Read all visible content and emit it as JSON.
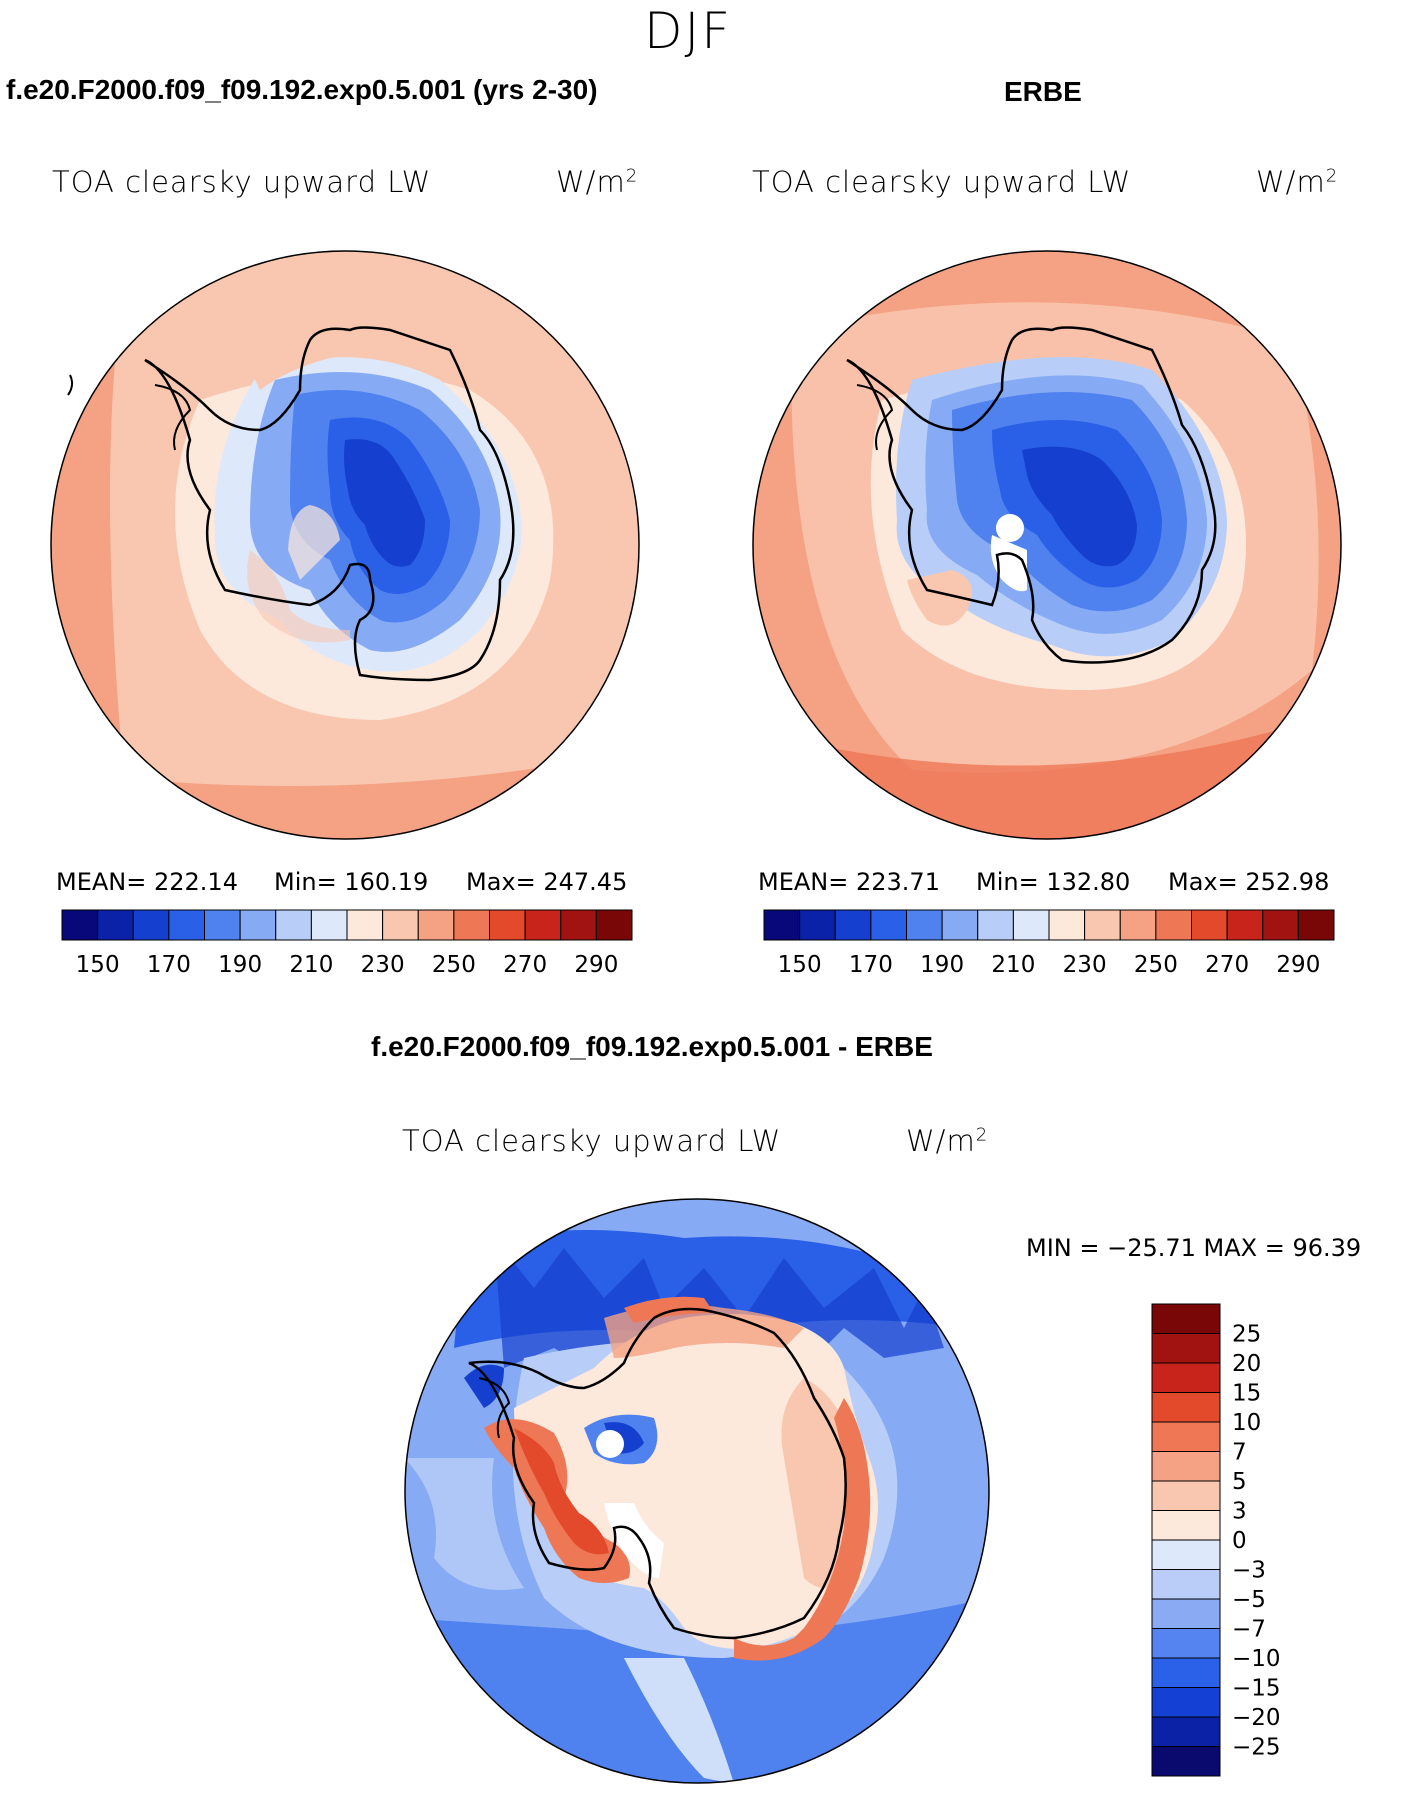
{
  "page": {
    "season": "DJF"
  },
  "panels": {
    "model": {
      "title": "f.e20.F2000.f09_f09.192.exp0.5.001 (yrs 2-30)",
      "variable": "TOA clearsky upward LW",
      "units_base": "W/m",
      "units_exp": "2",
      "mean": "MEAN= 222.14",
      "min": "Min= 160.19",
      "max": "Max= 247.45"
    },
    "obs": {
      "title": "ERBE",
      "variable": "TOA clearsky upward LW",
      "units_base": "W/m",
      "units_exp": "2",
      "mean": "MEAN= 223.71",
      "min": "Min= 132.80",
      "max": "Max= 252.98"
    },
    "diff": {
      "title": "f.e20.F2000.f09_f09.192.exp0.5.001 - ERBE",
      "variable": "TOA clearsky upward LW",
      "units_base": "W/m",
      "units_exp": "2",
      "minmax": "MIN = −25.71  MAX =   96.39"
    }
  },
  "colors": {
    "main_scale": [
      "#08087a",
      "#0a22a8",
      "#1540cf",
      "#2a5fe8",
      "#4f82ef",
      "#86aaf4",
      "#b8cef8",
      "#dde9fb",
      "#fde8dc",
      "#f9c7b0",
      "#f4a283",
      "#ee7755",
      "#e34a2c",
      "#c9241b",
      "#a11310",
      "#7a0708"
    ],
    "diff_scale": [
      "#0a0a6e",
      "#0b22a6",
      "#1440d4",
      "#2b60e8",
      "#5583ef",
      "#8aaaf3",
      "#b9cdf8",
      "#dde9fb",
      "#fde8dc",
      "#f9c7b0",
      "#f4a283",
      "#ef7755",
      "#e34a2c",
      "#c9241b",
      "#a11310",
      "#7a0708"
    ]
  },
  "chart_data": [
    {
      "type": "polar_contour_map",
      "title": "f.e20.F2000.f09_f09.192.exp0.5.001 (yrs 2-30)",
      "variable": "TOA clearsky upward LW",
      "units": "W/m2",
      "mean": 222.14,
      "min": 160.19,
      "max": 247.45,
      "colorbar_ticks": [
        "150",
        "170",
        "190",
        "210",
        "230",
        "250",
        "270",
        "290"
      ],
      "contour_levels": [
        145,
        150,
        160,
        170,
        180,
        190,
        200,
        210,
        220,
        230,
        240,
        250,
        260,
        270,
        280,
        290
      ]
    },
    {
      "type": "polar_contour_map",
      "title": "ERBE",
      "variable": "TOA clearsky upward LW",
      "units": "W/m2",
      "mean": 223.71,
      "min": 132.8,
      "max": 252.98,
      "colorbar_ticks": [
        "150",
        "170",
        "190",
        "210",
        "230",
        "250",
        "270",
        "290"
      ],
      "contour_levels": [
        145,
        150,
        160,
        170,
        180,
        190,
        200,
        210,
        220,
        230,
        240,
        250,
        260,
        270,
        280,
        290
      ]
    },
    {
      "type": "polar_contour_map",
      "title": "f.e20.F2000.f09_f09.192.exp0.5.001 - ERBE",
      "variable": "TOA clearsky upward LW",
      "units": "W/m2",
      "min": -25.71,
      "max": 96.39,
      "colorbar_ticks": [
        "25",
        "20",
        "15",
        "10",
        "7",
        "5",
        "3",
        "0",
        "−3",
        "−5",
        "−7",
        "−10",
        "−15",
        "−20",
        "−25"
      ]
    }
  ]
}
